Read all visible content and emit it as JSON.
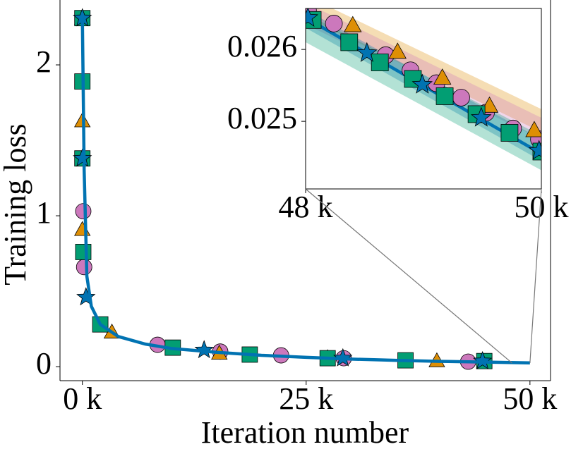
{
  "chart_data": [
    {
      "type": "line",
      "xlabel": "Iteration number",
      "ylabel": "Training loss",
      "xlim": [
        -2500,
        52300
      ],
      "ylim": [
        -0.093,
        2.43
      ],
      "xticks": [
        {
          "value": 0,
          "label": "0 k"
        },
        {
          "value": 25000,
          "label": "25 k"
        },
        {
          "value": 50000,
          "label": "50 k"
        }
      ],
      "yticks": [
        0,
        1,
        2
      ],
      "series": [
        {
          "color": "#cc78bc",
          "marker": "circle",
          "x": [
            100,
            200,
            8400,
            15400,
            22200,
            29200,
            43100
          ],
          "values": [
            1.03,
            0.66,
            0.145,
            0.1,
            0.075,
            0.056,
            0.033
          ]
        },
        {
          "color": "#de8f05",
          "marker": "triangle",
          "x": [
            0,
            0,
            0,
            3300,
            15300,
            27400,
            39600
          ],
          "values": [
            2.31,
            1.63,
            0.91,
            0.23,
            0.09,
            0.06,
            0.04
          ]
        },
        {
          "color": "#029e73",
          "marker": "square",
          "x": [
            0,
            0,
            0,
            100,
            2000,
            10100,
            18700,
            27400,
            36100,
            44900
          ],
          "values": [
            2.31,
            1.89,
            1.38,
            0.76,
            0.28,
            0.126,
            0.08,
            0.056,
            0.042,
            0.037
          ]
        },
        {
          "color": "#0173b2",
          "marker": "star",
          "x": [
            0,
            0,
            400,
            13600,
            29100,
            44700
          ],
          "values": [
            2.31,
            1.38,
            0.46,
            0.11,
            0.056,
            0.037
          ]
        },
        {
          "color": "#0173b2",
          "marker": "none",
          "x": [
            0,
            200,
            500,
            1000,
            2000,
            4000,
            7000,
            10000,
            15000,
            20000,
            25000,
            30000,
            35000,
            40000,
            45000,
            50000
          ],
          "values": [
            2.31,
            1.3,
            0.6,
            0.4,
            0.28,
            0.2,
            0.15,
            0.12,
            0.095,
            0.075,
            0.062,
            0.05,
            0.042,
            0.035,
            0.03,
            0.025
          ]
        }
      ]
    },
    {
      "type": "line",
      "xlim": [
        48000,
        50000
      ],
      "ylim": [
        0.02406,
        0.02657
      ],
      "xticks": [
        {
          "value": 48000,
          "label": "48 k"
        },
        {
          "value": 50000,
          "label": "50 k"
        }
      ],
      "yticks": [
        0.025,
        0.026
      ],
      "bands": [
        {
          "color": "#de8f05",
          "x": [
            48000,
            50000
          ],
          "lower": [
            0.02645,
            0.02485
          ],
          "upper": [
            0.02675,
            0.02517
          ]
        },
        {
          "color": "#cc78bc",
          "x": [
            48000,
            50000
          ],
          "lower": [
            0.02635,
            0.02475
          ],
          "upper": [
            0.02665,
            0.02505
          ]
        },
        {
          "color": "#0173b2",
          "x": [
            48000,
            50000
          ],
          "lower": [
            0.0263,
            0.02445
          ],
          "upper": [
            0.02655,
            0.02475
          ]
        },
        {
          "color": "#029e73",
          "x": [
            48000,
            50000
          ],
          "lower": [
            0.0261,
            0.02432
          ],
          "upper": [
            0.0265,
            0.0248
          ]
        }
      ],
      "series": [
        {
          "color": "#0173b2",
          "marker": "none",
          "x": [
            48000,
            50000
          ],
          "values": [
            0.02644,
            0.02455
          ]
        },
        {
          "color": "#cc78bc",
          "marker": "circle",
          "x": [
            48020,
            48240,
            48680,
            48890,
            49110,
            49320,
            49530,
            49760,
            49980
          ],
          "values": [
            0.02654,
            0.02636,
            0.02592,
            0.02571,
            0.02553,
            0.02533,
            0.02512,
            0.0249,
            0.02475
          ]
        },
        {
          "color": "#de8f05",
          "marker": "triangle",
          "x": [
            48400,
            48780,
            49160,
            49560,
            49940
          ],
          "values": [
            0.02634,
            0.02597,
            0.02561,
            0.02522,
            0.02488
          ]
        },
        {
          "color": "#029e73",
          "marker": "square",
          "x": [
            48060,
            48370,
            48630,
            48910,
            49180,
            49450,
            49730,
            50000
          ],
          "values": [
            0.02641,
            0.0261,
            0.02582,
            0.02559,
            0.02535,
            0.0251,
            0.02484,
            0.02458
          ]
        },
        {
          "color": "#0173b2",
          "marker": "star",
          "x": [
            48020,
            48520,
            48990,
            49490,
            49980
          ],
          "values": [
            0.02644,
            0.02595,
            0.02551,
            0.02505,
            0.02459
          ]
        }
      ]
    }
  ]
}
